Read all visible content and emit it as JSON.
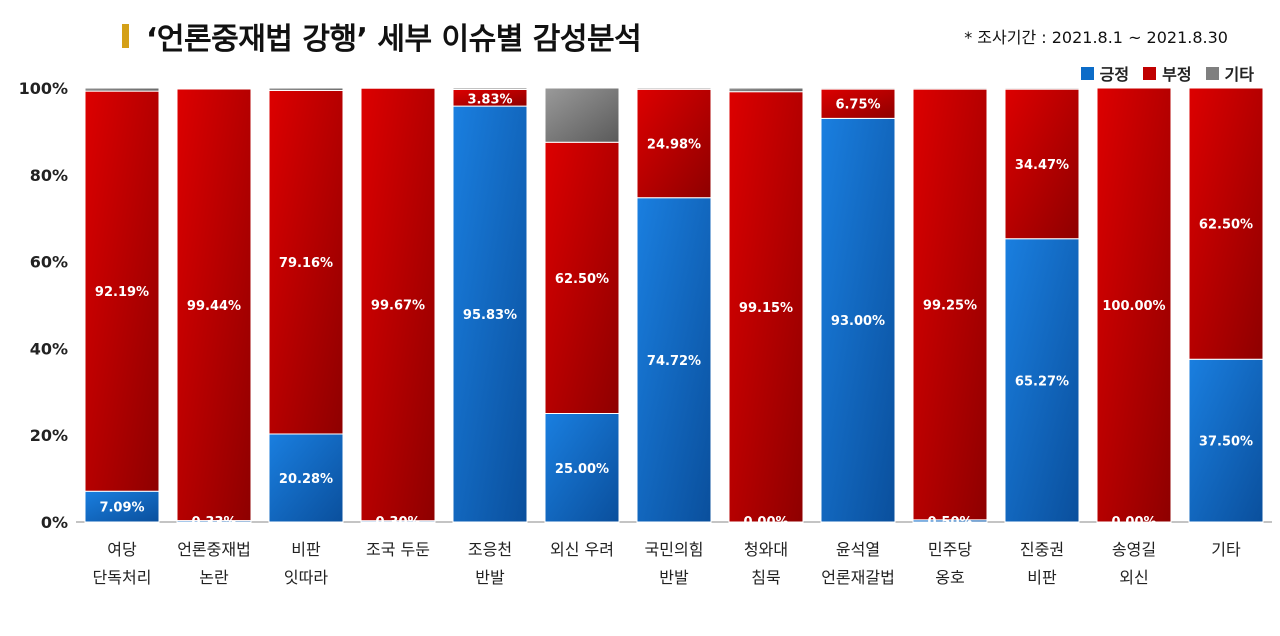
{
  "title": "‘언론중재법 강행’ 세부 이슈별 감성분석",
  "period": "* 조사기간 : 2021.8.1 ~ 2021.8.30",
  "colors": {
    "positive": "#0c6cc8",
    "negative": "#c00000",
    "other": "#7f7f7f",
    "title_mark": "#d4a017"
  },
  "chart_data": {
    "type": "bar",
    "stacked": true,
    "orientation": "vertical",
    "categories": [
      [
        "여당",
        "단독처리"
      ],
      [
        "언론중재법",
        "논란"
      ],
      [
        "비판",
        "잇따라"
      ],
      [
        "조국 두둔"
      ],
      [
        "조응천",
        "반발"
      ],
      [
        "외신 우려"
      ],
      [
        "국민의힘",
        "반발"
      ],
      [
        "청와대",
        "침묵"
      ],
      [
        "윤석열",
        "언론재갈법"
      ],
      [
        "민주당",
        "옹호"
      ],
      [
        "진중권",
        "비판"
      ],
      [
        "송영길",
        "외신"
      ],
      [
        "기타"
      ]
    ],
    "series": [
      {
        "name": "긍정",
        "values": [
          7.09,
          0.33,
          20.28,
          0.3,
          95.83,
          25.0,
          74.72,
          0.0,
          93.0,
          0.5,
          65.27,
          0.0,
          37.5
        ],
        "labels": [
          "7.09%",
          "0.33%",
          "20.28%",
          "0.30%",
          "95.83%",
          "25.00%",
          "74.72%",
          "0.00%",
          "93.00%",
          "0.50%",
          "65.27%",
          "0.00%",
          "37.50%"
        ]
      },
      {
        "name": "부정",
        "values": [
          92.19,
          99.44,
          79.16,
          99.67,
          3.83,
          62.5,
          24.98,
          99.15,
          6.75,
          99.25,
          34.47,
          100.0,
          62.5
        ],
        "labels": [
          "92.19%",
          "99.44%",
          "79.16%",
          "99.67%",
          "3.83%",
          "62.50%",
          "24.98%",
          "99.15%",
          "6.75%",
          "99.25%",
          "34.47%",
          "100.00%",
          "62.50%"
        ]
      },
      {
        "name": "기타",
        "values": [
          0.72,
          0.23,
          0.56,
          0.03,
          0.34,
          12.5,
          0.3,
          0.85,
          0.25,
          0.25,
          0.26,
          0.0,
          0.0
        ]
      }
    ],
    "ylim": [
      0,
      100
    ],
    "yticks": [
      "0%",
      "20%",
      "40%",
      "60%",
      "80%",
      "100%"
    ],
    "legend_position": "top-right"
  }
}
